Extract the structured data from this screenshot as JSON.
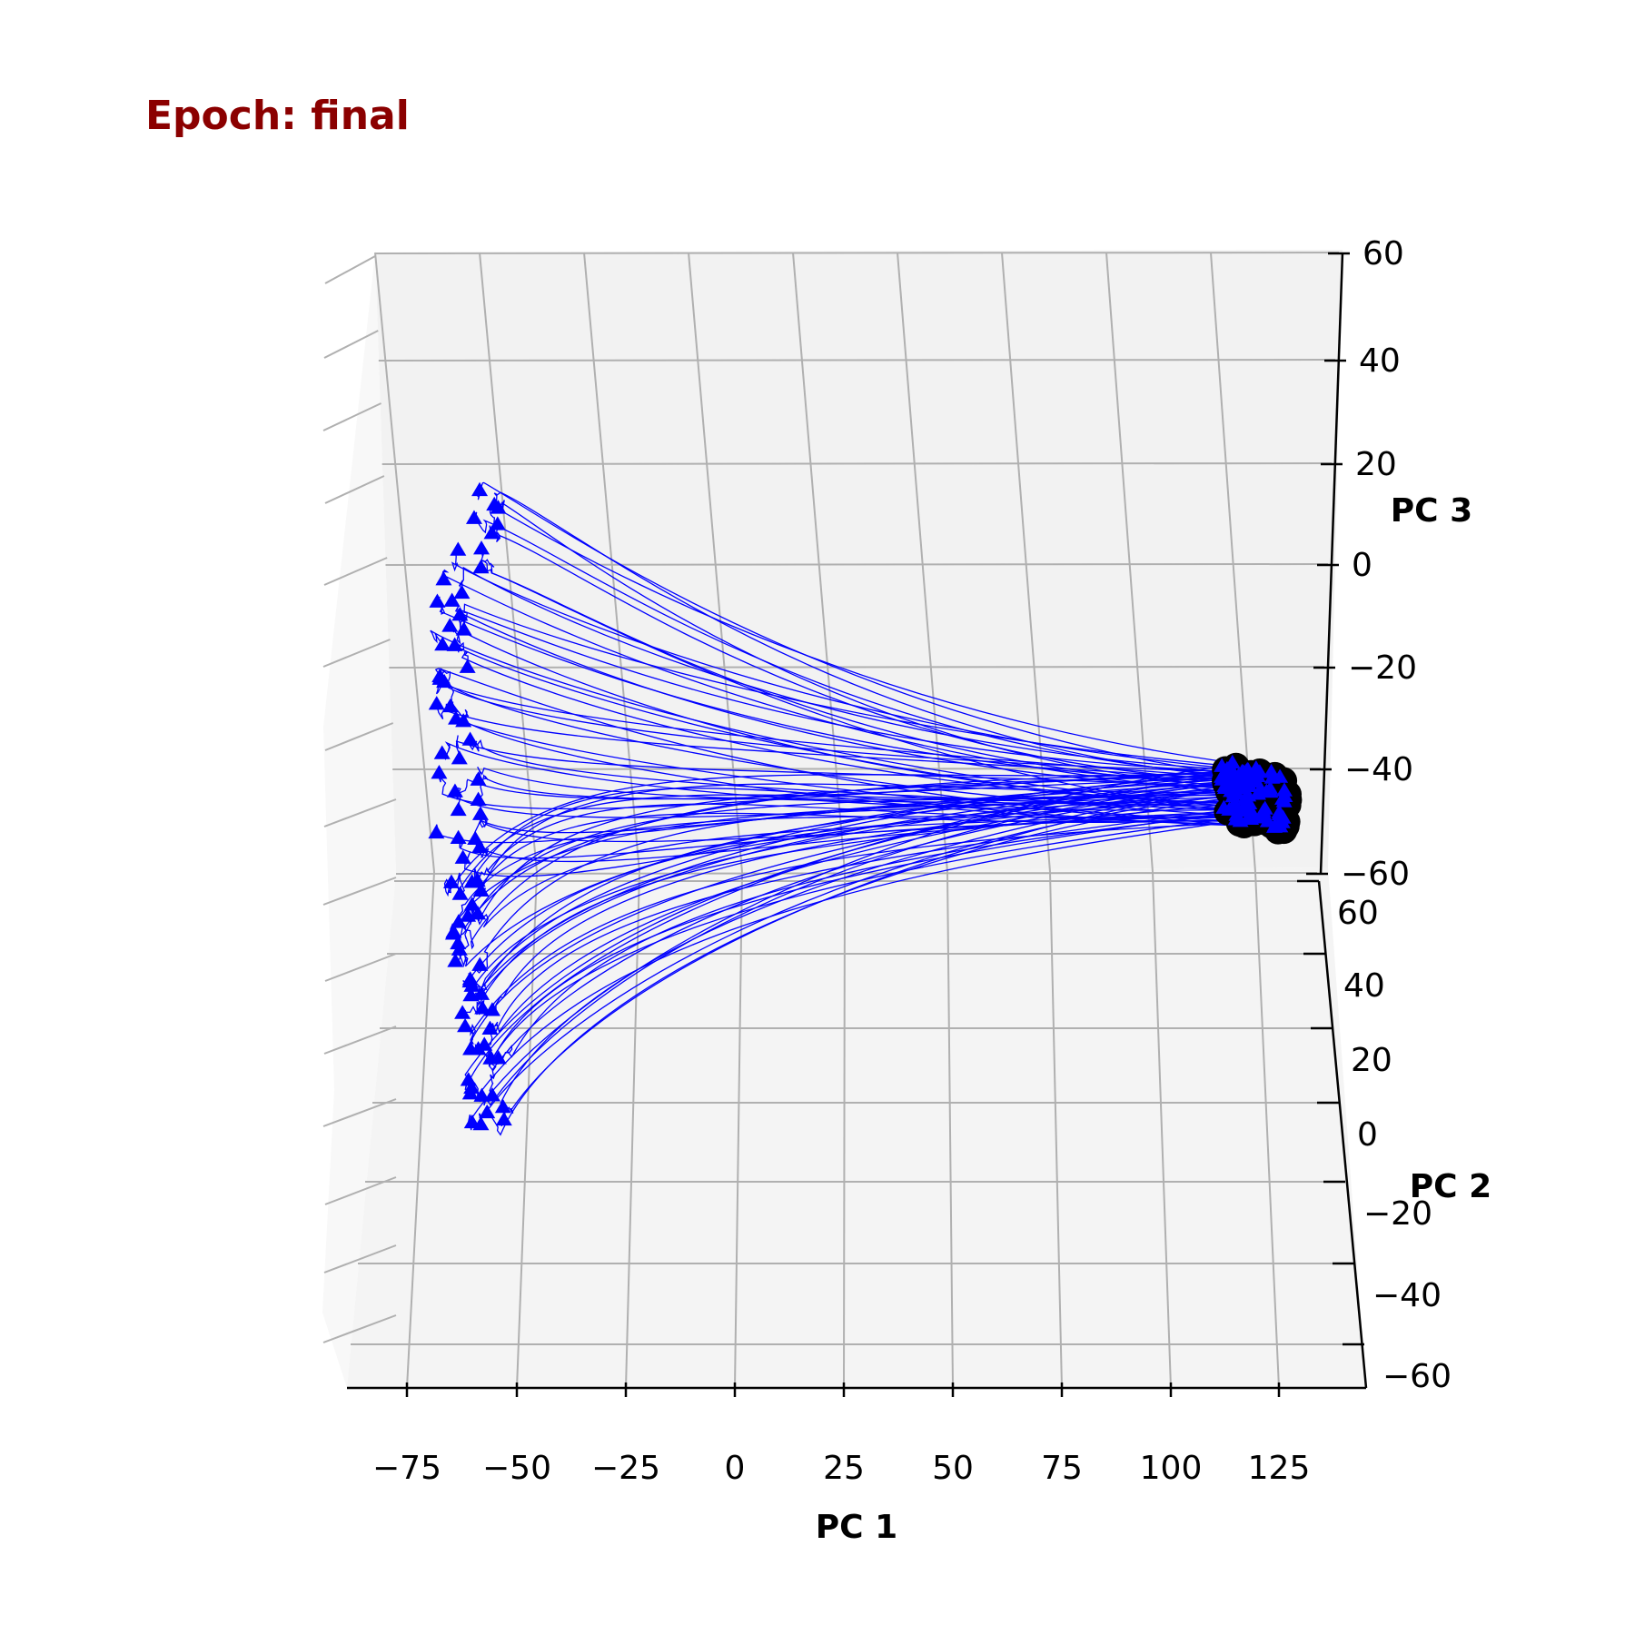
{
  "chart_data": {
    "type": "line",
    "title": "Epoch: final",
    "title_color": "#8b0000",
    "view": "3d",
    "trajectory_color": "#0000ff",
    "start_marker": "triangle",
    "end_marker": "circle",
    "end_marker_color": "#000000",
    "grid": true,
    "pane_color": "#f2f2f2",
    "grid_color": "#b0b0b0",
    "axes": {
      "x": {
        "label": "PC 1",
        "range": [
          -90,
          140
        ],
        "ticks": [
          -75,
          -50,
          -25,
          0,
          25,
          50,
          75,
          100,
          125
        ],
        "tick_labels": [
          "−75",
          "−50",
          "−25",
          "0",
          "25",
          "50",
          "75",
          "100",
          "125"
        ]
      },
      "y": {
        "label": "PC 2",
        "range": [
          -70,
          80
        ],
        "ticks": [
          -60,
          -40,
          -20,
          0,
          20,
          40,
          60
        ],
        "tick_labels": [
          "−60",
          "−40",
          "−20",
          "0",
          "20",
          "40",
          "60"
        ]
      },
      "z": {
        "label": "PC 3",
        "range": [
          -60,
          60
        ],
        "ticks": [
          -60,
          -40,
          -20,
          0,
          20,
          40,
          60
        ],
        "tick_labels": [
          "−60",
          "−40",
          "−20",
          "0",
          "20",
          "40",
          "60"
        ]
      }
    },
    "start_cluster": {
      "pc1_range": [
        -68,
        -52
      ],
      "points_upper_screen": 40,
      "points_lower_screen": 40
    },
    "end_cluster": {
      "pc1_range": [
        112,
        128
      ],
      "points": 40
    }
  }
}
